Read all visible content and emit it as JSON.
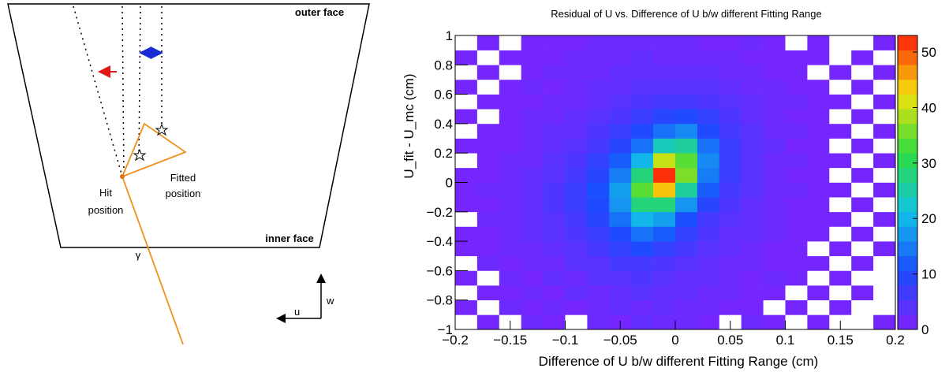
{
  "diagram": {
    "outer_face": "outer face",
    "inner_face": "inner face",
    "hit_position": [
      "Hit",
      "position"
    ],
    "fitted_position": [
      "Fitted",
      "position"
    ],
    "gamma": "γ",
    "u_axis": "u",
    "w_axis": "w"
  },
  "chart_data": {
    "type": "heatmap",
    "title": "Residual of U vs. Difference of U b/w different Fitting Range",
    "x_label": "Difference of U b/w different Fitting Range (cm)",
    "y_label": "U_fit - U_mc (cm)",
    "xlim": [
      -0.2,
      0.2
    ],
    "ylim": [
      -1,
      1
    ],
    "zlim": [
      0,
      53
    ],
    "xticks": [
      {
        "value": -0.2,
        "label": "−0.2"
      },
      {
        "value": -0.15,
        "label": "−0.15"
      },
      {
        "value": -0.1,
        "label": "−0.1"
      },
      {
        "value": -0.05,
        "label": "−0.05"
      },
      0,
      0.05,
      0.1,
      0.15,
      0.2
    ],
    "yticks": [
      {
        "value": -1,
        "label": "−1"
      },
      {
        "value": -0.8,
        "label": "−0.8"
      },
      {
        "value": -0.6,
        "label": "−0.6"
      },
      {
        "value": -0.4,
        "label": "−0.4"
      },
      {
        "value": -0.2,
        "label": "−0.2"
      },
      0,
      0.2,
      0.4,
      0.6,
      0.8,
      1
    ],
    "zticks": [
      0,
      10,
      20,
      30,
      40,
      50
    ],
    "colors": [
      "#7f22ff",
      "#1a4cff",
      "#12c3e6",
      "#2edc3e",
      "#f4e20c",
      "#ff1e0a"
    ],
    "z": [
      [
        0,
        1,
        0,
        2,
        1,
        0,
        2,
        1,
        3,
        2,
        2,
        1,
        0,
        2,
        1,
        0,
        1,
        0,
        0,
        1
      ],
      [
        1,
        0,
        2,
        1,
        2,
        1,
        2,
        3,
        2,
        3,
        2,
        2,
        1,
        1,
        0,
        1,
        0,
        1,
        0,
        0
      ],
      [
        0,
        1,
        1,
        2,
        1,
        3,
        2,
        3,
        4,
        3,
        3,
        2,
        2,
        1,
        1,
        0,
        1,
        0,
        1,
        0
      ],
      [
        1,
        0,
        2,
        1,
        3,
        2,
        4,
        4,
        5,
        4,
        3,
        3,
        2,
        1,
        2,
        1,
        0,
        1,
        0,
        0
      ],
      [
        0,
        2,
        1,
        2,
        2,
        4,
        4,
        6,
        6,
        5,
        4,
        3,
        2,
        2,
        1,
        1,
        1,
        0,
        1,
        0
      ],
      [
        1,
        1,
        2,
        2,
        3,
        4,
        6,
        8,
        10,
        8,
        6,
        4,
        3,
        2,
        1,
        1,
        0,
        1,
        0,
        1
      ],
      [
        1,
        1,
        2,
        3,
        4,
        5,
        7,
        10,
        14,
        12,
        8,
        5,
        3,
        3,
        2,
        1,
        1,
        0,
        1,
        0
      ],
      [
        0,
        2,
        2,
        3,
        4,
        6,
        9,
        14,
        20,
        18,
        11,
        6,
        4,
        3,
        2,
        1,
        1,
        1,
        0,
        1
      ],
      [
        1,
        1,
        2,
        3,
        5,
        7,
        10,
        17,
        28,
        28,
        17,
        9,
        5,
        3,
        2,
        1,
        1,
        0,
        1,
        0
      ],
      [
        1,
        2,
        2,
        3,
        5,
        7,
        11,
        18,
        34,
        44,
        26,
        12,
        6,
        4,
        2,
        2,
        1,
        1,
        0,
        1
      ],
      [
        1,
        1,
        2,
        3,
        4,
        6,
        9,
        15,
        28,
        52,
        36,
        15,
        7,
        4,
        2,
        1,
        1,
        0,
        1,
        0
      ],
      [
        0,
        1,
        2,
        2,
        4,
        5,
        8,
        12,
        20,
        40,
        34,
        16,
        7,
        4,
        2,
        2,
        1,
        1,
        0,
        1
      ],
      [
        1,
        1,
        1,
        2,
        3,
        4,
        6,
        9,
        14,
        24,
        26,
        14,
        7,
        4,
        3,
        1,
        1,
        0,
        1,
        0
      ],
      [
        0,
        1,
        1,
        2,
        3,
        3,
        5,
        7,
        10,
        14,
        16,
        10,
        6,
        4,
        2,
        2,
        1,
        1,
        0,
        1
      ],
      [
        1,
        0,
        1,
        2,
        2,
        3,
        4,
        5,
        7,
        9,
        10,
        8,
        5,
        3,
        2,
        1,
        1,
        0,
        1,
        0
      ],
      [
        0,
        1,
        1,
        1,
        2,
        2,
        3,
        4,
        5,
        6,
        6,
        5,
        4,
        3,
        2,
        2,
        1,
        1,
        0,
        1
      ],
      [
        1,
        0,
        1,
        2,
        1,
        2,
        3,
        3,
        4,
        4,
        4,
        4,
        3,
        2,
        2,
        1,
        1,
        0,
        1,
        0
      ],
      [
        0,
        1,
        0,
        1,
        2,
        2,
        2,
        3,
        3,
        3,
        3,
        3,
        2,
        2,
        1,
        1,
        0,
        1,
        0,
        1
      ],
      [
        1,
        0,
        1,
        1,
        1,
        2,
        2,
        2,
        3,
        2,
        2,
        2,
        2,
        1,
        1,
        1,
        1,
        0,
        1,
        0
      ],
      [
        0,
        1,
        0,
        1,
        1,
        1,
        2,
        2,
        2,
        2,
        2,
        1,
        1,
        2,
        1,
        0,
        1,
        0,
        0,
        1
      ]
    ]
  }
}
